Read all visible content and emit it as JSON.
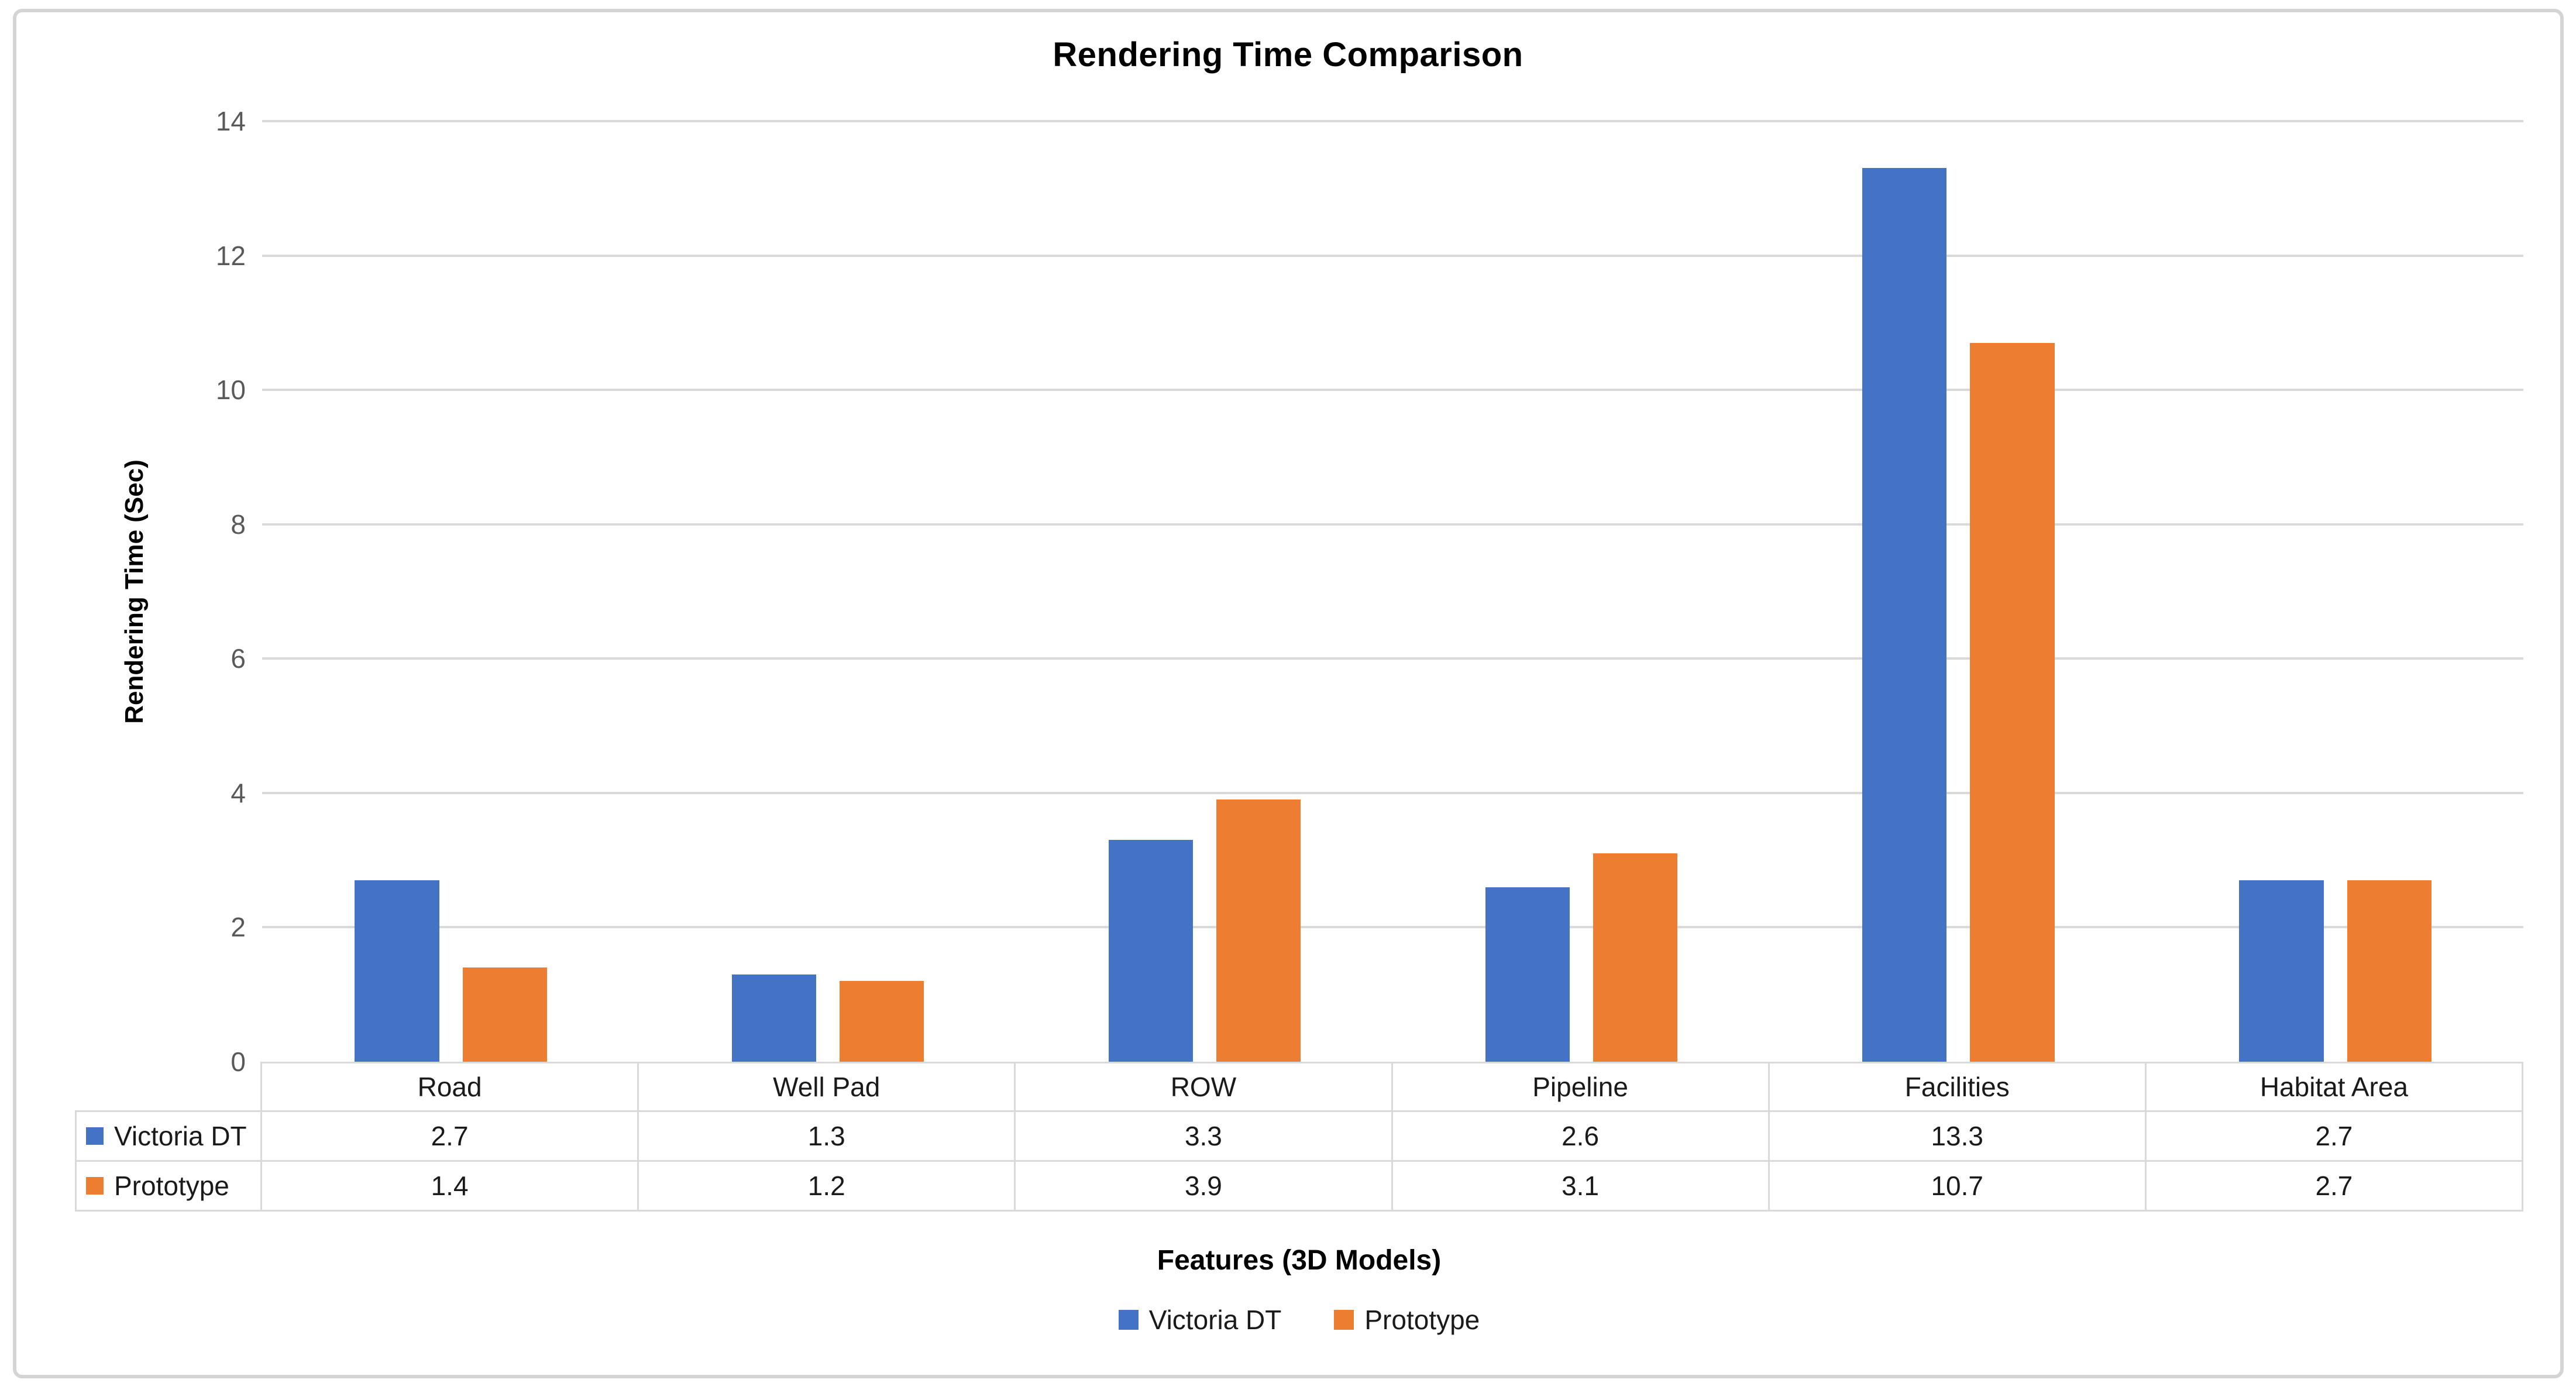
{
  "chart_data": {
    "type": "bar",
    "title": "Rendering Time Comparison",
    "ylabel": "Rendering Time (Sec)",
    "xlabel": "Features (3D Models)",
    "categories": [
      "Road",
      "Well Pad",
      "ROW",
      "Pipeline",
      "Facilities",
      "Habitat Area"
    ],
    "series": [
      {
        "name": "Victoria DT",
        "color": "#4472C4",
        "values": [
          2.7,
          1.3,
          3.3,
          2.6,
          13.3,
          2.7
        ]
      },
      {
        "name": "Prototype",
        "color": "#ED7D31",
        "values": [
          1.4,
          1.2,
          3.9,
          3.1,
          10.7,
          2.7
        ]
      }
    ],
    "ylim": [
      0,
      14
    ],
    "yticks": [
      0,
      2,
      4,
      6,
      8,
      10,
      12,
      14
    ],
    "value_decimals": 1,
    "grid": true,
    "legend_position": "bottom",
    "data_table_shown": true
  },
  "colors": {
    "gridline": "#d9d9d9",
    "table_border": "#d9d9d9",
    "tick_label": "#595959",
    "frame_border": "#d4d4d4",
    "background": "#ffffff",
    "text": "#1a1a1a"
  }
}
